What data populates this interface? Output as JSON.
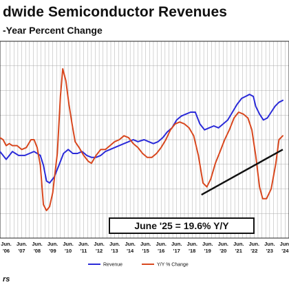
{
  "title": "dwide Semiconductor Revenues",
  "subtitle": "-Year Percent Change",
  "callout": "June '25 = 19.6% Y/Y",
  "footer": "rs",
  "legend": {
    "revenue": "Revenue",
    "yy": "Y/Y % Change"
  },
  "colors": {
    "revenue": "#2a2ad8",
    "yy": "#d8471e",
    "trend": "#111111",
    "grid": "#aaaaaa"
  },
  "chart_data": {
    "type": "line",
    "title": "dwide Semiconductor Revenues",
    "subtitle": "-Year Percent Change",
    "grid": true,
    "legend_position": "bottom-center",
    "x_ticks": [
      {
        "t": 2006.5,
        "line1": "Jun.",
        "line2": "'06"
      },
      {
        "t": 2007.5,
        "line1": "Jun.",
        "line2": "'07"
      },
      {
        "t": 2008.5,
        "line1": "Jun.",
        "line2": "'08"
      },
      {
        "t": 2009.5,
        "line1": "Jun.",
        "line2": "'09"
      },
      {
        "t": 2010.5,
        "line1": "Jun.",
        "line2": "'10"
      },
      {
        "t": 2011.5,
        "line1": "Jun.",
        "line2": "'11"
      },
      {
        "t": 2012.5,
        "line1": "Jun.",
        "line2": "'12"
      },
      {
        "t": 2013.5,
        "line1": "Jun.",
        "line2": "'13"
      },
      {
        "t": 2014.5,
        "line1": "Jun.",
        "line2": "'14"
      },
      {
        "t": 2015.5,
        "line1": "Jun.",
        "line2": "'15"
      },
      {
        "t": 2016.5,
        "line1": "Jun.",
        "line2": "'16"
      },
      {
        "t": 2017.5,
        "line1": "Jun.",
        "line2": "'17"
      },
      {
        "t": 2018.5,
        "line1": "Jun.",
        "line2": "'18"
      },
      {
        "t": 2019.5,
        "line1": "Jun.",
        "line2": "'19"
      },
      {
        "t": 2020.5,
        "line1": "Jun.",
        "line2": "'20"
      },
      {
        "t": 2021.5,
        "line1": "Jun.",
        "line2": "'21"
      },
      {
        "t": 2022.5,
        "line1": "Jun.",
        "line2": "'22"
      },
      {
        "t": 2023.5,
        "line1": "Jun.",
        "line2": "'23"
      },
      {
        "t": 2024.5,
        "line1": "Jun.",
        "line2": "'24"
      }
    ],
    "y_gridlines": 8,
    "series": [
      {
        "name": "Revenue",
        "points": [
          [
            2006.1,
            0.44
          ],
          [
            2006.5,
            0.4
          ],
          [
            2006.9,
            0.44
          ],
          [
            2007.3,
            0.42
          ],
          [
            2007.7,
            0.42
          ],
          [
            2008.0,
            0.43
          ],
          [
            2008.3,
            0.44
          ],
          [
            2008.7,
            0.42
          ],
          [
            2008.9,
            0.37
          ],
          [
            2009.1,
            0.29
          ],
          [
            2009.3,
            0.28
          ],
          [
            2009.6,
            0.31
          ],
          [
            2009.9,
            0.37
          ],
          [
            2010.2,
            0.43
          ],
          [
            2010.5,
            0.45
          ],
          [
            2010.8,
            0.43
          ],
          [
            2011.1,
            0.43
          ],
          [
            2011.4,
            0.44
          ],
          [
            2011.7,
            0.42
          ],
          [
            2012.0,
            0.41
          ],
          [
            2012.3,
            0.41
          ],
          [
            2012.6,
            0.42
          ],
          [
            2012.9,
            0.44
          ],
          [
            2013.2,
            0.45
          ],
          [
            2013.5,
            0.46
          ],
          [
            2013.8,
            0.47
          ],
          [
            2014.1,
            0.48
          ],
          [
            2014.4,
            0.49
          ],
          [
            2014.7,
            0.5
          ],
          [
            2015.0,
            0.49
          ],
          [
            2015.4,
            0.5
          ],
          [
            2015.7,
            0.49
          ],
          [
            2016.0,
            0.48
          ],
          [
            2016.3,
            0.49
          ],
          [
            2016.6,
            0.51
          ],
          [
            2016.9,
            0.54
          ],
          [
            2017.2,
            0.56
          ],
          [
            2017.5,
            0.6
          ],
          [
            2017.8,
            0.62
          ],
          [
            2018.1,
            0.63
          ],
          [
            2018.4,
            0.64
          ],
          [
            2018.7,
            0.64
          ],
          [
            2019.0,
            0.58
          ],
          [
            2019.3,
            0.55
          ],
          [
            2019.6,
            0.56
          ],
          [
            2019.9,
            0.57
          ],
          [
            2020.2,
            0.56
          ],
          [
            2020.5,
            0.58
          ],
          [
            2020.8,
            0.6
          ],
          [
            2021.1,
            0.64
          ],
          [
            2021.4,
            0.68
          ],
          [
            2021.7,
            0.71
          ],
          [
            2021.95,
            0.72
          ],
          [
            2022.2,
            0.73
          ],
          [
            2022.45,
            0.72
          ],
          [
            2022.6,
            0.67
          ],
          [
            2022.85,
            0.63
          ],
          [
            2023.1,
            0.6
          ],
          [
            2023.35,
            0.61
          ],
          [
            2023.6,
            0.64
          ],
          [
            2023.85,
            0.67
          ],
          [
            2024.1,
            0.69
          ],
          [
            2024.35,
            0.7
          ]
        ]
      },
      {
        "name": "Y/Y % Change",
        "points": [
          [
            2006.1,
            0.51
          ],
          [
            2006.3,
            0.5
          ],
          [
            2006.5,
            0.47
          ],
          [
            2006.7,
            0.48
          ],
          [
            2006.9,
            0.47
          ],
          [
            2007.2,
            0.47
          ],
          [
            2007.5,
            0.45
          ],
          [
            2007.8,
            0.46
          ],
          [
            2008.1,
            0.5
          ],
          [
            2008.3,
            0.5
          ],
          [
            2008.5,
            0.46
          ],
          [
            2008.7,
            0.37
          ],
          [
            2008.9,
            0.17
          ],
          [
            2009.1,
            0.14
          ],
          [
            2009.3,
            0.16
          ],
          [
            2009.5,
            0.23
          ],
          [
            2009.8,
            0.43
          ],
          [
            2010.0,
            0.72
          ],
          [
            2010.15,
            0.86
          ],
          [
            2010.35,
            0.8
          ],
          [
            2010.55,
            0.68
          ],
          [
            2010.75,
            0.58
          ],
          [
            2010.95,
            0.49
          ],
          [
            2011.2,
            0.46
          ],
          [
            2011.5,
            0.42
          ],
          [
            2011.8,
            0.39
          ],
          [
            2012.0,
            0.38
          ],
          [
            2012.3,
            0.42
          ],
          [
            2012.6,
            0.45
          ],
          [
            2012.9,
            0.45
          ],
          [
            2013.2,
            0.47
          ],
          [
            2013.5,
            0.49
          ],
          [
            2013.8,
            0.5
          ],
          [
            2014.1,
            0.52
          ],
          [
            2014.4,
            0.51
          ],
          [
            2014.7,
            0.48
          ],
          [
            2015.0,
            0.46
          ],
          [
            2015.3,
            0.43
          ],
          [
            2015.6,
            0.41
          ],
          [
            2015.9,
            0.41
          ],
          [
            2016.2,
            0.43
          ],
          [
            2016.5,
            0.46
          ],
          [
            2016.8,
            0.5
          ],
          [
            2017.1,
            0.55
          ],
          [
            2017.4,
            0.58
          ],
          [
            2017.7,
            0.59
          ],
          [
            2018.0,
            0.58
          ],
          [
            2018.3,
            0.56
          ],
          [
            2018.6,
            0.52
          ],
          [
            2018.9,
            0.42
          ],
          [
            2019.2,
            0.28
          ],
          [
            2019.45,
            0.26
          ],
          [
            2019.7,
            0.3
          ],
          [
            2020.0,
            0.38
          ],
          [
            2020.3,
            0.44
          ],
          [
            2020.6,
            0.5
          ],
          [
            2020.9,
            0.55
          ],
          [
            2021.2,
            0.61
          ],
          [
            2021.5,
            0.64
          ],
          [
            2021.8,
            0.63
          ],
          [
            2022.1,
            0.61
          ],
          [
            2022.35,
            0.55
          ],
          [
            2022.6,
            0.42
          ],
          [
            2022.85,
            0.26
          ],
          [
            2023.05,
            0.2
          ],
          [
            2023.3,
            0.2
          ],
          [
            2023.6,
            0.25
          ],
          [
            2023.9,
            0.38
          ],
          [
            2024.1,
            0.5
          ],
          [
            2024.35,
            0.52
          ]
        ]
      }
    ],
    "trend_line": {
      "from": [
        2019.1,
        0.22
      ],
      "to": [
        2024.35,
        0.45
      ]
    }
  }
}
